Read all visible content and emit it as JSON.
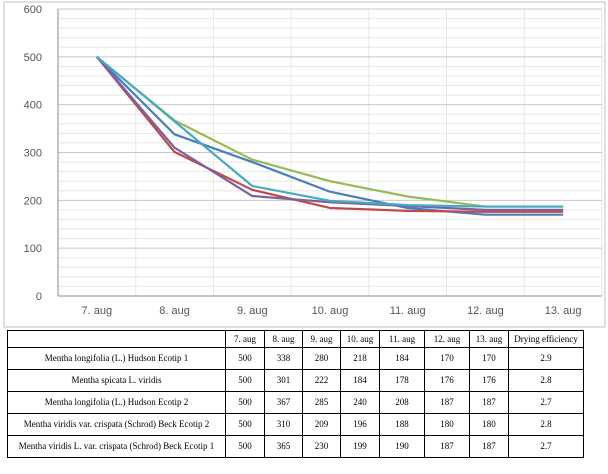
{
  "chart_data": {
    "type": "line",
    "categories": [
      "7. aug",
      "8. aug",
      "9. aug",
      "10. aug",
      "11. aug",
      "12. aug",
      "13. aug"
    ],
    "ylim": [
      0,
      600
    ],
    "yticks": [
      0,
      100,
      200,
      300,
      400,
      500,
      600
    ],
    "grid": true,
    "legend": "none",
    "series": [
      {
        "name": "Mentha longifolia (L.) Hudson Ecotip 1",
        "values": [
          500,
          338,
          280,
          218,
          184,
          170,
          170
        ],
        "color": "#4a7ebb"
      },
      {
        "name": "Mentha spicata L. viridis",
        "values": [
          500,
          301,
          222,
          184,
          178,
          176,
          176
        ],
        "color": "#be4b48"
      },
      {
        "name": "Mentha longifolia (L.) Hudson Ecotip 2",
        "values": [
          500,
          367,
          285,
          240,
          208,
          187,
          187
        ],
        "color": "#98b954"
      },
      {
        "name": "Mentha viridis var. crispata (Schrod) Beck Ecotip 2",
        "values": [
          500,
          310,
          209,
          196,
          188,
          180,
          180
        ],
        "color": "#7d60a0"
      },
      {
        "name": "Mentha viridis L. var. crispata (Schrod) Beck Ecotip 1",
        "values": [
          500,
          365,
          230,
          199,
          190,
          187,
          187
        ],
        "color": "#46aac5"
      }
    ]
  },
  "table": {
    "headers": [
      "",
      "7. aug",
      "8. aug",
      "9. aug",
      "10. aug",
      "11. aug",
      "12. aug",
      "13. aug",
      "Drying efficiency"
    ],
    "rows": [
      [
        "Mentha longifolia (L.) Hudson Ecotip 1",
        "500",
        "338",
        "280",
        "218",
        "184",
        "170",
        "170",
        "2.9"
      ],
      [
        "Mentha spicata L. viridis",
        "500",
        "301",
        "222",
        "184",
        "178",
        "176",
        "176",
        "2.8"
      ],
      [
        "Mentha longifolia (L.) Hudson Ecotip 2",
        "500",
        "367",
        "285",
        "240",
        "208",
        "187",
        "187",
        "2.7"
      ],
      [
        "Mentha viridis var. crispata (Schrod) Beck Ecotip 2",
        "500",
        "310",
        "209",
        "196",
        "188",
        "180",
        "180",
        "2.8"
      ],
      [
        "Mentha viridis L. var. crispata (Schrod) Beck Ecotip 1",
        "500",
        "365",
        "230",
        "199",
        "190",
        "187",
        "187",
        "2.7"
      ]
    ]
  }
}
